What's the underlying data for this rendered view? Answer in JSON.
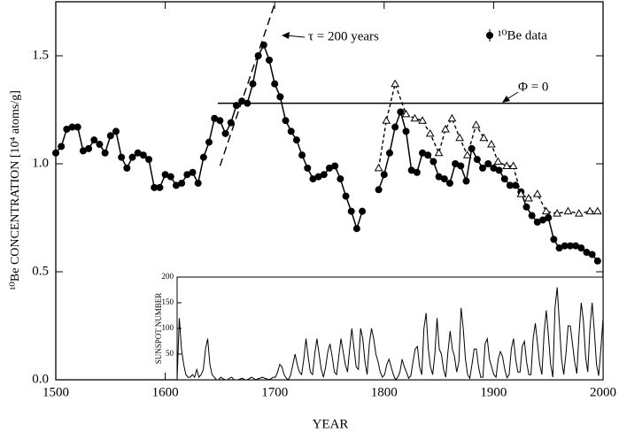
{
  "chart_data": [
    {
      "type": "line",
      "xlabel": "YEAR",
      "ylabel": "¹⁰Be CONCENTRATION [10⁴ atoms/g]",
      "xlim": [
        1500,
        2000
      ],
      "ylim": [
        0,
        1.75
      ],
      "xticks": [
        1500,
        1600,
        1700,
        1800,
        1900,
        2000
      ],
      "yticks": [
        {
          "value": 0,
          "label": "0.0"
        },
        {
          "value": 0.5,
          "label": "0.5"
        },
        {
          "value": 1,
          "label": "1.0"
        },
        {
          "value": 1.5,
          "label": "1.5"
        }
      ],
      "series": [
        {
          "name": "¹⁰Be data",
          "color": "#000000",
          "marker": "circle",
          "dash": false,
          "x": [
            1500,
            1505,
            1510,
            1515,
            1520,
            1525,
            1530,
            1535,
            1540,
            1545,
            1550,
            1555,
            1560,
            1565,
            1570,
            1575,
            1580,
            1585,
            1590,
            1595,
            1600,
            1605,
            1610,
            1615,
            1620,
            1625,
            1630,
            1635,
            1640,
            1645,
            1650,
            1655,
            1660,
            1665,
            1670,
            1675,
            1680,
            1685,
            1690,
            1695,
            1700,
            1705,
            1710,
            1715,
            1720,
            1725,
            1730,
            1735,
            1740,
            1745,
            1750,
            1755,
            1760,
            1765,
            1770,
            1775,
            1780,
            1788,
            1795,
            1800,
            1805,
            1810,
            1815,
            1820,
            1825,
            1830,
            1835,
            1840,
            1845,
            1850,
            1855,
            1860,
            1865,
            1870,
            1875,
            1880,
            1885,
            1890,
            1895,
            1900,
            1905,
            1910,
            1915,
            1920,
            1925,
            1930,
            1935,
            1940,
            1945,
            1950,
            1955,
            1960,
            1965,
            1970,
            1975,
            1980,
            1985,
            1990,
            1995
          ],
          "values": [
            1.05,
            1.08,
            1.16,
            1.17,
            1.17,
            1.06,
            1.07,
            1.11,
            1.09,
            1.05,
            1.13,
            1.15,
            1.03,
            0.98,
            1.03,
            1.05,
            1.04,
            1.02,
            0.89,
            0.89,
            0.95,
            0.94,
            0.9,
            0.91,
            0.95,
            0.96,
            0.91,
            1.03,
            1.1,
            1.21,
            1.2,
            1.14,
            1.19,
            1.27,
            1.29,
            1.28,
            1.37,
            1.5,
            1.55,
            1.48,
            1.37,
            1.31,
            1.2,
            1.15,
            1.11,
            1.04,
            0.98,
            0.93,
            0.94,
            0.95,
            0.98,
            0.99,
            0.93,
            0.85,
            0.78,
            0.7,
            0.78,
            null,
            0.88,
            0.95,
            1.05,
            1.17,
            1.24,
            1.15,
            0.97,
            0.96,
            1.05,
            1.04,
            1.01,
            0.94,
            0.93,
            0.91,
            1.0,
            0.99,
            0.92,
            1.07,
            1.02,
            0.98,
            1.0,
            0.98,
            0.97,
            0.93,
            0.9,
            0.9,
            0.87,
            0.8,
            0.76,
            0.73,
            0.74,
            0.75,
            0.65,
            0.61,
            0.62,
            0.62,
            0.62,
            0.61,
            0.59,
            0.58,
            0.55
          ]
        },
        {
          "color": "#000000",
          "marker": "triangle",
          "dash": true,
          "x": [
            1795,
            1802,
            1810,
            1820,
            1828,
            1835,
            1842,
            1850,
            1856,
            1862,
            1869,
            1876,
            1884,
            1891,
            1898,
            1904,
            1912,
            1918,
            1925,
            1932,
            1940,
            1948,
            1958,
            1968,
            1978,
            1988,
            1995
          ],
          "values": [
            0.98,
            1.2,
            1.37,
            1.23,
            1.21,
            1.2,
            1.14,
            1.05,
            1.16,
            1.21,
            1.12,
            1.04,
            1.18,
            1.12,
            1.09,
            1.01,
            0.99,
            0.99,
            0.86,
            0.84,
            0.86,
            0.78,
            0.77,
            0.78,
            0.77,
            0.78,
            0.78
          ]
        },
        {
          "label": "Φ = 0",
          "color": "#000000",
          "marker": "none",
          "dash": false,
          "x": [
            1648,
            2000
          ],
          "values": [
            1.28,
            1.28
          ]
        },
        {
          "label": "τ = 200 years",
          "color": "#000000",
          "marker": "none",
          "dash": true,
          "x": [
            1650,
            1700
          ],
          "values": [
            0.99,
            1.74
          ]
        }
      ]
    },
    {
      "type": "line",
      "ylabel": "SUNSPOT NUMBER",
      "xlim": [
        1610,
        2000
      ],
      "ylim": [
        0,
        200
      ],
      "yticks": [
        50,
        100,
        150,
        200
      ],
      "series": [
        {
          "color": "#000000",
          "marker": "none",
          "dash": false,
          "x": [
            1610,
            1612,
            1614,
            1616,
            1618,
            1620,
            1622,
            1624,
            1626,
            1628,
            1630,
            1632,
            1634,
            1636,
            1638,
            1640,
            1642,
            1644,
            1646,
            1648,
            1650,
            1652,
            1654,
            1656,
            1658,
            1660,
            1662,
            1664,
            1666,
            1668,
            1670,
            1672,
            1674,
            1676,
            1678,
            1680,
            1682,
            1684,
            1686,
            1688,
            1690,
            1692,
            1694,
            1696,
            1698,
            1700,
            1702,
            1704,
            1706,
            1708,
            1710,
            1712,
            1714,
            1716,
            1718,
            1720,
            1722,
            1724,
            1726,
            1728,
            1730,
            1732,
            1734,
            1736,
            1738,
            1740,
            1742,
            1744,
            1746,
            1748,
            1750,
            1752,
            1754,
            1756,
            1758,
            1760,
            1762,
            1764,
            1766,
            1768,
            1770,
            1772,
            1774,
            1776,
            1778,
            1780,
            1782,
            1784,
            1786,
            1788,
            1790,
            1792,
            1794,
            1796,
            1798,
            1800,
            1802,
            1804,
            1806,
            1808,
            1810,
            1812,
            1814,
            1816,
            1818,
            1820,
            1822,
            1824,
            1826,
            1828,
            1830,
            1832,
            1834,
            1836,
            1838,
            1840,
            1842,
            1844,
            1846,
            1848,
            1850,
            1852,
            1854,
            1856,
            1858,
            1860,
            1862,
            1864,
            1866,
            1868,
            1870,
            1872,
            1874,
            1876,
            1878,
            1880,
            1882,
            1884,
            1886,
            1888,
            1890,
            1892,
            1894,
            1896,
            1898,
            1900,
            1902,
            1904,
            1906,
            1908,
            1910,
            1912,
            1914,
            1916,
            1918,
            1920,
            1922,
            1924,
            1926,
            1928,
            1930,
            1932,
            1934,
            1936,
            1938,
            1940,
            1942,
            1944,
            1946,
            1948,
            1950,
            1952,
            1954,
            1956,
            1958,
            1960,
            1962,
            1964,
            1966,
            1968,
            1970,
            1972,
            1974,
            1976,
            1978,
            1980,
            1982,
            1984,
            1986,
            1988,
            1990,
            1992,
            1994,
            1996,
            1998,
            2000
          ],
          "values": [
            0,
            120,
            60,
            30,
            10,
            5,
            5,
            10,
            5,
            20,
            5,
            10,
            20,
            60,
            80,
            30,
            10,
            5,
            0,
            0,
            5,
            2,
            0,
            0,
            3,
            5,
            0,
            0,
            0,
            2,
            3,
            0,
            0,
            2,
            5,
            3,
            0,
            2,
            3,
            5,
            3,
            2,
            0,
            2,
            5,
            5,
            15,
            30,
            25,
            10,
            3,
            0,
            10,
            30,
            50,
            30,
            15,
            10,
            40,
            80,
            45,
            15,
            10,
            50,
            80,
            50,
            20,
            5,
            25,
            55,
            70,
            45,
            15,
            10,
            45,
            80,
            55,
            30,
            15,
            60,
            100,
            60,
            25,
            20,
            100,
            80,
            35,
            10,
            70,
            100,
            80,
            50,
            35,
            15,
            5,
            10,
            30,
            40,
            25,
            10,
            0,
            5,
            15,
            40,
            25,
            15,
            3,
            8,
            35,
            60,
            65,
            25,
            10,
            100,
            130,
            60,
            25,
            10,
            50,
            120,
            60,
            50,
            20,
            5,
            55,
            95,
            60,
            45,
            15,
            35,
            140,
            100,
            40,
            10,
            3,
            30,
            60,
            60,
            25,
            5,
            5,
            70,
            80,
            40,
            25,
            10,
            5,
            40,
            55,
            45,
            20,
            4,
            10,
            60,
            80,
            40,
            15,
            15,
            65,
            75,
            35,
            10,
            10,
            80,
            110,
            70,
            30,
            10,
            90,
            135,
            85,
            30,
            5,
            140,
            180,
            110,
            40,
            10,
            50,
            105,
            105,
            70,
            35,
            12,
            90,
            150,
            115,
            45,
            15,
            100,
            150,
            95,
            30,
            8,
            60,
            120
          ]
        }
      ]
    }
  ]
}
